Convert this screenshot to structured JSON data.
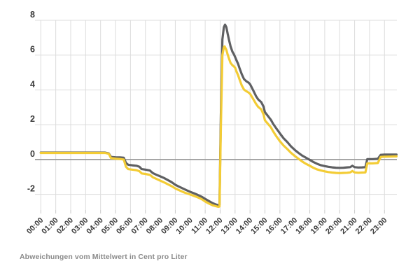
{
  "caption": "Abweichungen vom Mittelwert in Cent pro Liter",
  "colors": {
    "background": "#ffffff",
    "grid": "#dcdcdc",
    "zero_line": "#9d9d9d",
    "tick": "#c9c9c9",
    "axis_label": "#3b3b3b",
    "caption": "#8a8a8a",
    "series_dark": "#5f6062",
    "series_yellow": "#f3cc35"
  },
  "chart_data": {
    "type": "line",
    "title": "",
    "xlabel": "",
    "ylabel": "",
    "note": "Abweichungen vom Mittelwert in Cent pro Liter",
    "grid": true,
    "legend": "none",
    "xlim": [
      0,
      23.83
    ],
    "ylim": [
      -2.9,
      8
    ],
    "x_tick_labels": [
      "00:00",
      "01:00",
      "02:00",
      "03:00",
      "04:00",
      "05:00",
      "06:00",
      "07:00",
      "08:00",
      "09:00",
      "10:00",
      "11:00",
      "12:00",
      "13:00",
      "14:00",
      "15:00",
      "16:00",
      "17:00",
      "18:00",
      "19:00",
      "20:00",
      "21:00",
      "22:00",
      "23:00"
    ],
    "y_ticks": [
      8,
      6,
      4,
      2,
      0,
      -2
    ],
    "series": [
      {
        "name": "dark-gray-line",
        "color": "#5f6062",
        "points": [
          [
            0,
            0.4
          ],
          [
            0.5,
            0.4
          ],
          [
            1,
            0.4
          ],
          [
            1.5,
            0.4
          ],
          [
            2,
            0.4
          ],
          [
            2.5,
            0.4
          ],
          [
            3,
            0.4
          ],
          [
            3.5,
            0.4
          ],
          [
            4,
            0.4
          ],
          [
            4.3,
            0.4
          ],
          [
            4.55,
            0.35
          ],
          [
            4.7,
            0.15
          ],
          [
            5,
            0.13
          ],
          [
            5.3,
            0.12
          ],
          [
            5.55,
            0.1
          ],
          [
            5.7,
            -0.2
          ],
          [
            5.85,
            -0.3
          ],
          [
            6.1,
            -0.33
          ],
          [
            6.4,
            -0.36
          ],
          [
            6.6,
            -0.42
          ],
          [
            6.75,
            -0.55
          ],
          [
            7,
            -0.58
          ],
          [
            7.3,
            -0.63
          ],
          [
            7.5,
            -0.78
          ],
          [
            7.75,
            -0.88
          ],
          [
            8,
            -0.97
          ],
          [
            8.25,
            -1.06
          ],
          [
            8.5,
            -1.18
          ],
          [
            8.75,
            -1.3
          ],
          [
            9,
            -1.45
          ],
          [
            9.25,
            -1.56
          ],
          [
            9.5,
            -1.66
          ],
          [
            9.75,
            -1.76
          ],
          [
            10,
            -1.86
          ],
          [
            10.25,
            -1.94
          ],
          [
            10.5,
            -2.03
          ],
          [
            10.75,
            -2.13
          ],
          [
            11,
            -2.26
          ],
          [
            11.25,
            -2.39
          ],
          [
            11.5,
            -2.51
          ],
          [
            11.7,
            -2.58
          ],
          [
            11.88,
            -2.62
          ],
          [
            11.96,
            -2.6
          ],
          [
            12.05,
            2.5
          ],
          [
            12.15,
            6.9
          ],
          [
            12.25,
            7.6
          ],
          [
            12.33,
            7.75
          ],
          [
            12.42,
            7.6
          ],
          [
            12.5,
            7.25
          ],
          [
            12.6,
            6.85
          ],
          [
            12.7,
            6.5
          ],
          [
            12.82,
            6.2
          ],
          [
            12.92,
            6.05
          ],
          [
            13,
            5.9
          ],
          [
            13.1,
            5.7
          ],
          [
            13.2,
            5.5
          ],
          [
            13.3,
            5.25
          ],
          [
            13.45,
            4.9
          ],
          [
            13.6,
            4.62
          ],
          [
            13.75,
            4.5
          ],
          [
            13.9,
            4.42
          ],
          [
            14,
            4.33
          ],
          [
            14.2,
            4.0
          ],
          [
            14.4,
            3.65
          ],
          [
            14.55,
            3.45
          ],
          [
            14.75,
            3.3
          ],
          [
            14.9,
            3.05
          ],
          [
            15,
            2.72
          ],
          [
            15.2,
            2.5
          ],
          [
            15.4,
            2.28
          ],
          [
            15.55,
            2.05
          ],
          [
            15.75,
            1.8
          ],
          [
            16,
            1.5
          ],
          [
            16.25,
            1.22
          ],
          [
            16.5,
            1.0
          ],
          [
            16.75,
            0.75
          ],
          [
            17,
            0.55
          ],
          [
            17.25,
            0.38
          ],
          [
            17.5,
            0.22
          ],
          [
            17.75,
            0.1
          ],
          [
            18,
            -0.02
          ],
          [
            18.25,
            -0.15
          ],
          [
            18.5,
            -0.25
          ],
          [
            18.75,
            -0.33
          ],
          [
            19,
            -0.38
          ],
          [
            19.25,
            -0.42
          ],
          [
            19.5,
            -0.45
          ],
          [
            19.75,
            -0.47
          ],
          [
            20,
            -0.48
          ],
          [
            20.25,
            -0.47
          ],
          [
            20.5,
            -0.45
          ],
          [
            20.7,
            -0.44
          ],
          [
            20.85,
            -0.36
          ],
          [
            21,
            -0.44
          ],
          [
            21.25,
            -0.46
          ],
          [
            21.5,
            -0.45
          ],
          [
            21.72,
            -0.44
          ],
          [
            21.85,
            0.02
          ],
          [
            22.2,
            0.02
          ],
          [
            22.55,
            0.04
          ],
          [
            22.75,
            0.27
          ],
          [
            23,
            0.28
          ],
          [
            23.4,
            0.28
          ],
          [
            23.8,
            0.28
          ]
        ]
      },
      {
        "name": "yellow-line",
        "color": "#f3cc35",
        "points": [
          [
            0,
            0.38
          ],
          [
            0.5,
            0.38
          ],
          [
            1,
            0.38
          ],
          [
            1.5,
            0.38
          ],
          [
            2,
            0.38
          ],
          [
            2.5,
            0.38
          ],
          [
            3,
            0.38
          ],
          [
            3.5,
            0.38
          ],
          [
            4,
            0.38
          ],
          [
            4.3,
            0.38
          ],
          [
            4.55,
            0.33
          ],
          [
            4.7,
            0.08
          ],
          [
            5,
            0.05
          ],
          [
            5.3,
            0.03
          ],
          [
            5.55,
            0.0
          ],
          [
            5.7,
            -0.42
          ],
          [
            5.85,
            -0.55
          ],
          [
            6.1,
            -0.58
          ],
          [
            6.4,
            -0.61
          ],
          [
            6.6,
            -0.67
          ],
          [
            6.75,
            -0.8
          ],
          [
            7,
            -0.83
          ],
          [
            7.3,
            -0.88
          ],
          [
            7.5,
            -1.02
          ],
          [
            7.75,
            -1.12
          ],
          [
            8,
            -1.22
          ],
          [
            8.25,
            -1.31
          ],
          [
            8.5,
            -1.42
          ],
          [
            8.75,
            -1.53
          ],
          [
            9,
            -1.66
          ],
          [
            9.25,
            -1.76
          ],
          [
            9.5,
            -1.86
          ],
          [
            9.75,
            -1.94
          ],
          [
            10,
            -2.01
          ],
          [
            10.25,
            -2.09
          ],
          [
            10.5,
            -2.17
          ],
          [
            10.75,
            -2.27
          ],
          [
            11,
            -2.41
          ],
          [
            11.25,
            -2.53
          ],
          [
            11.5,
            -2.63
          ],
          [
            11.7,
            -2.68
          ],
          [
            11.88,
            -2.72
          ],
          [
            11.96,
            -2.7
          ],
          [
            12.05,
            1.8
          ],
          [
            12.15,
            6.0
          ],
          [
            12.25,
            6.45
          ],
          [
            12.3,
            6.5
          ],
          [
            12.42,
            6.3
          ],
          [
            12.5,
            6.05
          ],
          [
            12.6,
            5.78
          ],
          [
            12.7,
            5.55
          ],
          [
            12.82,
            5.42
          ],
          [
            12.92,
            5.35
          ],
          [
            13,
            5.28
          ],
          [
            13.1,
            5.05
          ],
          [
            13.2,
            4.85
          ],
          [
            13.3,
            4.6
          ],
          [
            13.45,
            4.25
          ],
          [
            13.6,
            4.02
          ],
          [
            13.75,
            3.93
          ],
          [
            13.9,
            3.85
          ],
          [
            14,
            3.78
          ],
          [
            14.2,
            3.5
          ],
          [
            14.4,
            3.2
          ],
          [
            14.55,
            3.02
          ],
          [
            14.75,
            2.88
          ],
          [
            14.9,
            2.6
          ],
          [
            15,
            2.25
          ],
          [
            15.2,
            2.05
          ],
          [
            15.4,
            1.85
          ],
          [
            15.55,
            1.62
          ],
          [
            15.75,
            1.35
          ],
          [
            16,
            1.05
          ],
          [
            16.25,
            0.8
          ],
          [
            16.5,
            0.6
          ],
          [
            16.75,
            0.38
          ],
          [
            17,
            0.2
          ],
          [
            17.25,
            0.04
          ],
          [
            17.5,
            -0.12
          ],
          [
            17.75,
            -0.25
          ],
          [
            18,
            -0.36
          ],
          [
            18.25,
            -0.48
          ],
          [
            18.5,
            -0.57
          ],
          [
            18.75,
            -0.63
          ],
          [
            19,
            -0.68
          ],
          [
            19.25,
            -0.72
          ],
          [
            19.5,
            -0.75
          ],
          [
            19.75,
            -0.77
          ],
          [
            20,
            -0.78
          ],
          [
            20.25,
            -0.77
          ],
          [
            20.5,
            -0.76
          ],
          [
            20.7,
            -0.74
          ],
          [
            20.85,
            -0.66
          ],
          [
            21,
            -0.74
          ],
          [
            21.25,
            -0.76
          ],
          [
            21.5,
            -0.75
          ],
          [
            21.72,
            -0.74
          ],
          [
            21.85,
            -0.22
          ],
          [
            22.2,
            -0.22
          ],
          [
            22.55,
            -0.2
          ],
          [
            22.75,
            0.15
          ],
          [
            23,
            0.16
          ],
          [
            23.4,
            0.17
          ],
          [
            23.8,
            0.18
          ]
        ]
      }
    ]
  }
}
